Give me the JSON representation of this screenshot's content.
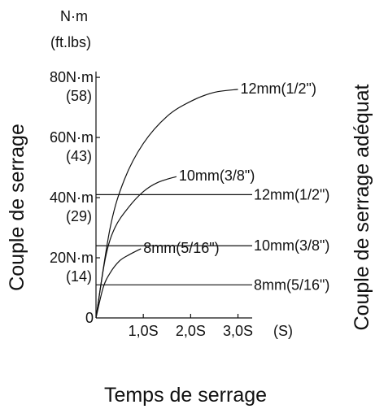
{
  "chart_data": {
    "type": "line",
    "y_unit": "N·m",
    "y_unit_alt": "(ft.lbs)",
    "ylabel": "Couple de serrage",
    "ylabel_right": "Couple de serrage adéquat",
    "xlabel": "Temps de serrage",
    "x_unit": "(S)",
    "x_ticks": [
      {
        "value": 1.0,
        "label": "1,0S"
      },
      {
        "value": 2.0,
        "label": "2,0S"
      },
      {
        "value": 3.0,
        "label": "3,0S"
      }
    ],
    "y_ticks": [
      {
        "value": 0,
        "label": "0",
        "alt": ""
      },
      {
        "value": 20,
        "label": "20N·m",
        "alt": "(14)"
      },
      {
        "value": 40,
        "label": "40N·m",
        "alt": "(29)"
      },
      {
        "value": 60,
        "label": "60N·m",
        "alt": "(43)"
      },
      {
        "value": 80,
        "label": "80N·m",
        "alt": "(58)"
      }
    ],
    "xlim": [
      0,
      3.3
    ],
    "ylim": [
      0,
      83
    ],
    "curves": [
      {
        "name": "12mm(1/2\")",
        "points": [
          [
            0,
            0
          ],
          [
            0.3,
            30
          ],
          [
            0.6,
            46
          ],
          [
            1.0,
            58
          ],
          [
            1.5,
            67
          ],
          [
            2.0,
            72
          ],
          [
            2.5,
            75
          ],
          [
            3.0,
            76
          ]
        ]
      },
      {
        "name": "10mm(3/8\")",
        "points": [
          [
            0,
            0
          ],
          [
            0.2,
            20
          ],
          [
            0.4,
            30
          ],
          [
            0.7,
            37
          ],
          [
            1.0,
            42
          ],
          [
            1.3,
            45
          ],
          [
            1.7,
            47
          ]
        ]
      },
      {
        "name": "8mm(5/16\")",
        "points": [
          [
            0,
            0
          ],
          [
            0.15,
            10
          ],
          [
            0.3,
            15
          ],
          [
            0.5,
            19
          ],
          [
            0.7,
            21
          ],
          [
            0.95,
            23
          ]
        ]
      }
    ],
    "levels": [
      {
        "name": "12mm(1/2\")",
        "value": 41
      },
      {
        "name": "10mm(3/8\")",
        "value": 24
      },
      {
        "name": "8mm(5/16\")",
        "value": 11
      }
    ]
  }
}
